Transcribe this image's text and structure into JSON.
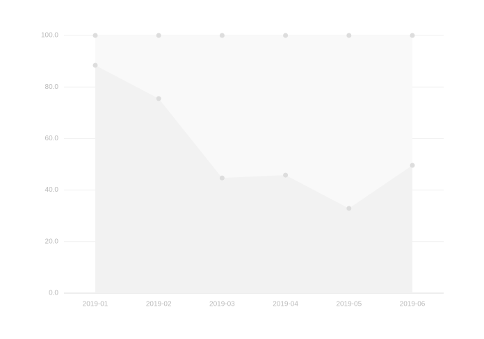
{
  "chart_data": {
    "type": "area",
    "categories": [
      "2019-01",
      "2019-02",
      "2019-03",
      "2019-04",
      "2019-05",
      "2019-06"
    ],
    "series": [
      {
        "color": "#f9f9f9",
        "values": [
          100,
          100,
          100,
          100,
          100,
          100
        ]
      },
      {
        "color": "#f2f2f2",
        "values": [
          88.4,
          75.5,
          44.7,
          45.8,
          32.9,
          49.6
        ]
      }
    ],
    "ylim": [
      0,
      100
    ],
    "yticks": [
      {
        "value": 0,
        "label": "0.0"
      },
      {
        "value": 20,
        "label": "20.0"
      },
      {
        "value": 40,
        "label": "40.0"
      },
      {
        "value": 60,
        "label": "60.0"
      },
      {
        "value": 80,
        "label": "80.0"
      },
      {
        "value": 100,
        "label": "100.0"
      }
    ],
    "grid": true
  }
}
